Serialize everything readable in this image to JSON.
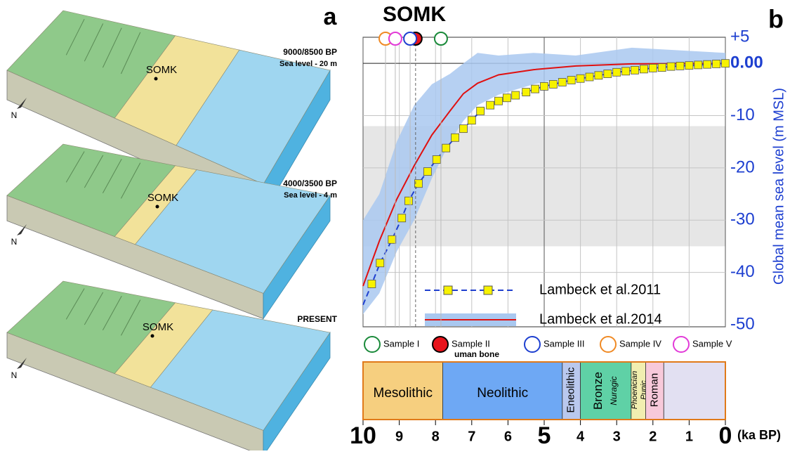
{
  "panel_a": {
    "panel_label": "a",
    "north": "N",
    "blocks": [
      {
        "label": "9000/8500 BP",
        "sublabel": "Sea level - 20 m",
        "site": "SOMK"
      },
      {
        "label": "4000/3500 BP",
        "sublabel": "Sea level - 4 m",
        "site": "SOMK"
      },
      {
        "label": "PRESENT",
        "site": "SOMK"
      }
    ]
  },
  "chart_data": {
    "type": "line",
    "title": "SOMK",
    "panel_label": "b",
    "y_label": "Global mean sea level (m MSL)",
    "x_label": "(ka BP)",
    "xlim": [
      10,
      0
    ],
    "ylim": [
      -50,
      5
    ],
    "xticks": [
      10,
      9,
      8,
      7,
      6,
      5,
      4,
      3,
      2,
      1,
      0
    ],
    "yticks": [
      {
        "value": 5,
        "label": "+5"
      },
      {
        "value": 0,
        "label": "0.00"
      },
      -10,
      -20,
      -30,
      -40,
      -50
    ],
    "grid": true,
    "shaded_range": [
      -35,
      -12
    ],
    "series": [
      {
        "name": "Lambeck et al.2011",
        "color": "#1f3fcf",
        "marker_color": "#f7f200",
        "x": [
          9.76,
          9.53,
          9.2,
          8.93,
          8.74,
          8.47,
          8.22,
          7.97,
          7.71,
          7.46,
          7.23,
          7.0,
          6.76,
          6.49,
          6.26,
          6.03,
          5.79,
          5.5,
          5.25,
          5.0,
          4.75,
          4.5,
          4.25,
          4.0,
          3.75,
          3.5,
          3.25,
          3.0,
          2.75,
          2.5,
          2.25,
          2.0,
          1.75,
          1.5,
          1.25,
          1.0,
          0.75,
          0.5,
          0.25,
          0
        ],
        "values": [
          -42.2,
          -38.2,
          -33.7,
          -29.6,
          -26.3,
          -23.0,
          -20.7,
          -18.4,
          -16.2,
          -14.2,
          -12.5,
          -10.9,
          -9.1,
          -8.0,
          -7.2,
          -6.6,
          -6.1,
          -5.5,
          -4.9,
          -4.4,
          -4.0,
          -3.6,
          -3.2,
          -2.9,
          -2.6,
          -2.3,
          -2.0,
          -1.7,
          -1.5,
          -1.3,
          -1.1,
          -0.9,
          -0.8,
          -0.6,
          -0.5,
          -0.4,
          -0.3,
          -0.2,
          -0.1,
          0
        ]
      },
      {
        "name": "Lambeck et al.2014",
        "color": "#e01010",
        "band_color": "#a9c8f0",
        "x": [
          10,
          9.55,
          9.07,
          8.59,
          8.1,
          7.6,
          7.23,
          6.84,
          6.26,
          5.29,
          4.13,
          2.58,
          0
        ],
        "values": [
          -42.6,
          -34,
          -26,
          -19.6,
          -13.7,
          -9.1,
          -5.8,
          -3.8,
          -2.2,
          -1.2,
          -0.5,
          -0.1,
          0
        ],
        "upper": [
          -30,
          -25,
          -15,
          -8,
          -4,
          -2,
          0,
          2,
          1.5,
          2,
          1.5,
          3,
          2
        ],
        "lower": [
          -48,
          -44,
          -36,
          -30,
          -22,
          -15,
          -11,
          -8,
          -6,
          -4,
          -2.5,
          -1,
          -0.5
        ]
      }
    ],
    "samples": [
      {
        "name": "Sample I",
        "x": 7.85,
        "color": "#1a8a3a",
        "filled": false
      },
      {
        "name": "Sample II",
        "note": "uman bone",
        "x": 8.55,
        "color": "#e8141c",
        "filled": true
      },
      {
        "name": "Sample III",
        "x": 8.7,
        "color": "#1d3fd0",
        "filled": false
      },
      {
        "name": "Sample IV",
        "x": 9.38,
        "color": "#f08a24",
        "filled": false
      },
      {
        "name": "Sample V",
        "x": 9.11,
        "color": "#e23ad8",
        "filled": false
      }
    ],
    "periods": [
      {
        "name": "Mesolithic",
        "start": 10,
        "end": 7.8,
        "color": "#f6cf7f"
      },
      {
        "name": "Neolithic",
        "start": 7.8,
        "end": 4.5,
        "color": "#6ea8f4"
      },
      {
        "name": "Eneolithic",
        "start": 4.5,
        "end": 4.0,
        "color": "#b9c8ee"
      },
      {
        "name": "Bronze",
        "sub": "Nuragic",
        "start": 4.0,
        "end": 2.6,
        "color": "#5fd1a6"
      },
      {
        "name": "Phoenician",
        "sub": "Punic",
        "start": 2.6,
        "end": 2.2,
        "color": "#f1eeb0"
      },
      {
        "name": "Roman",
        "start": 2.2,
        "end": 1.7,
        "color": "#f7c9da"
      },
      {
        "start": 1.7,
        "end": 0,
        "color": "#e2e0f2"
      }
    ]
  }
}
